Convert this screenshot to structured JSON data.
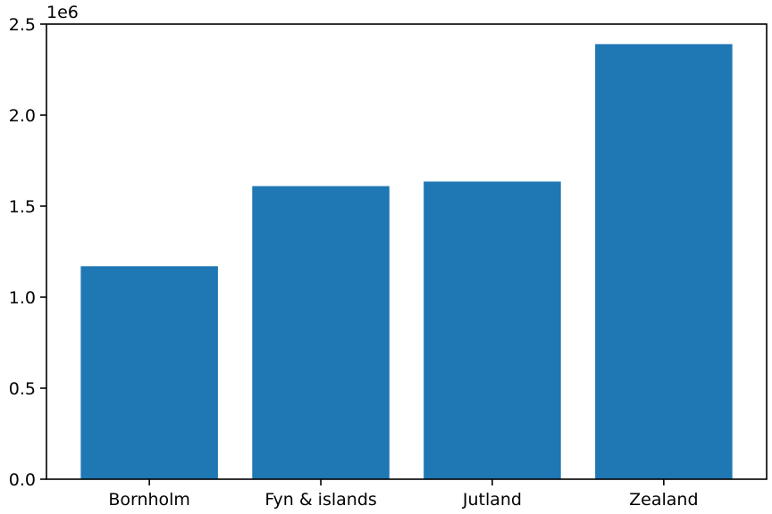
{
  "chart_data": {
    "type": "bar",
    "categories": [
      "Bornholm",
      "Fyn & islands",
      "Jutland",
      "Zealand"
    ],
    "values": [
      1170000,
      1610000,
      1635000,
      2390000
    ],
    "title": "",
    "xlabel": "",
    "ylabel": "",
    "ylim": [
      0,
      2500000
    ],
    "y_ticks": [
      0,
      500000,
      1000000,
      1500000,
      2000000,
      2500000
    ],
    "y_tick_labels": [
      "0.0",
      "0.5",
      "1.0",
      "1.5",
      "2.0",
      "2.5"
    ],
    "y_offset_label": "1e6",
    "grid": false,
    "legend": "none",
    "bar_color": "#1f77b4"
  }
}
